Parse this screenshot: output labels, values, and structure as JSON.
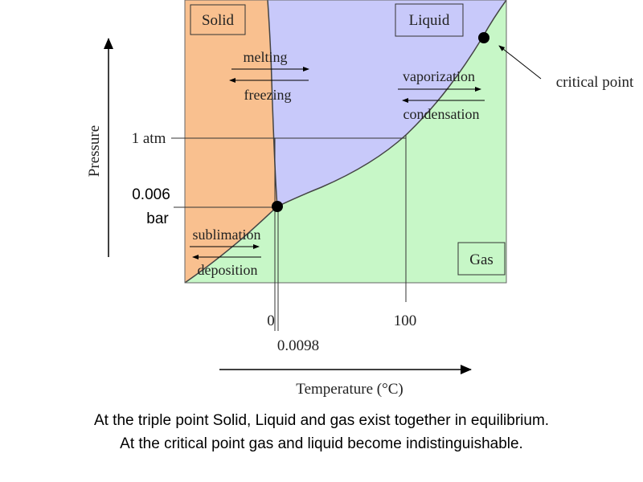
{
  "regions": {
    "solid": {
      "label": "Solid",
      "color": "#f9c08f"
    },
    "liquid": {
      "label": "Liquid",
      "color": "#c8c9fa"
    },
    "gas": {
      "label": "Gas",
      "color": "#c7f7c7"
    }
  },
  "transitions": {
    "melting": "melting",
    "freezing": "freezing",
    "vaporization": "vaporization",
    "condensation": "condensation",
    "sublimation": "sublimation",
    "deposition": "deposition"
  },
  "points": {
    "critical_point": "critical point"
  },
  "pressure_axis": {
    "label": "Pressure",
    "tick_1atm": "1 atm",
    "tick_triple_line1": "0.006",
    "tick_triple_line2": "bar"
  },
  "temperature_axis": {
    "label": "Temperature (°C)",
    "tick_0": "0",
    "tick_100": "100",
    "tick_0098": "0.0098"
  },
  "caption": {
    "line1": "At the triple point Solid, Liquid and gas exist together in equilibrium.",
    "line2": "At the critical point gas and liquid become indistinguishable."
  }
}
